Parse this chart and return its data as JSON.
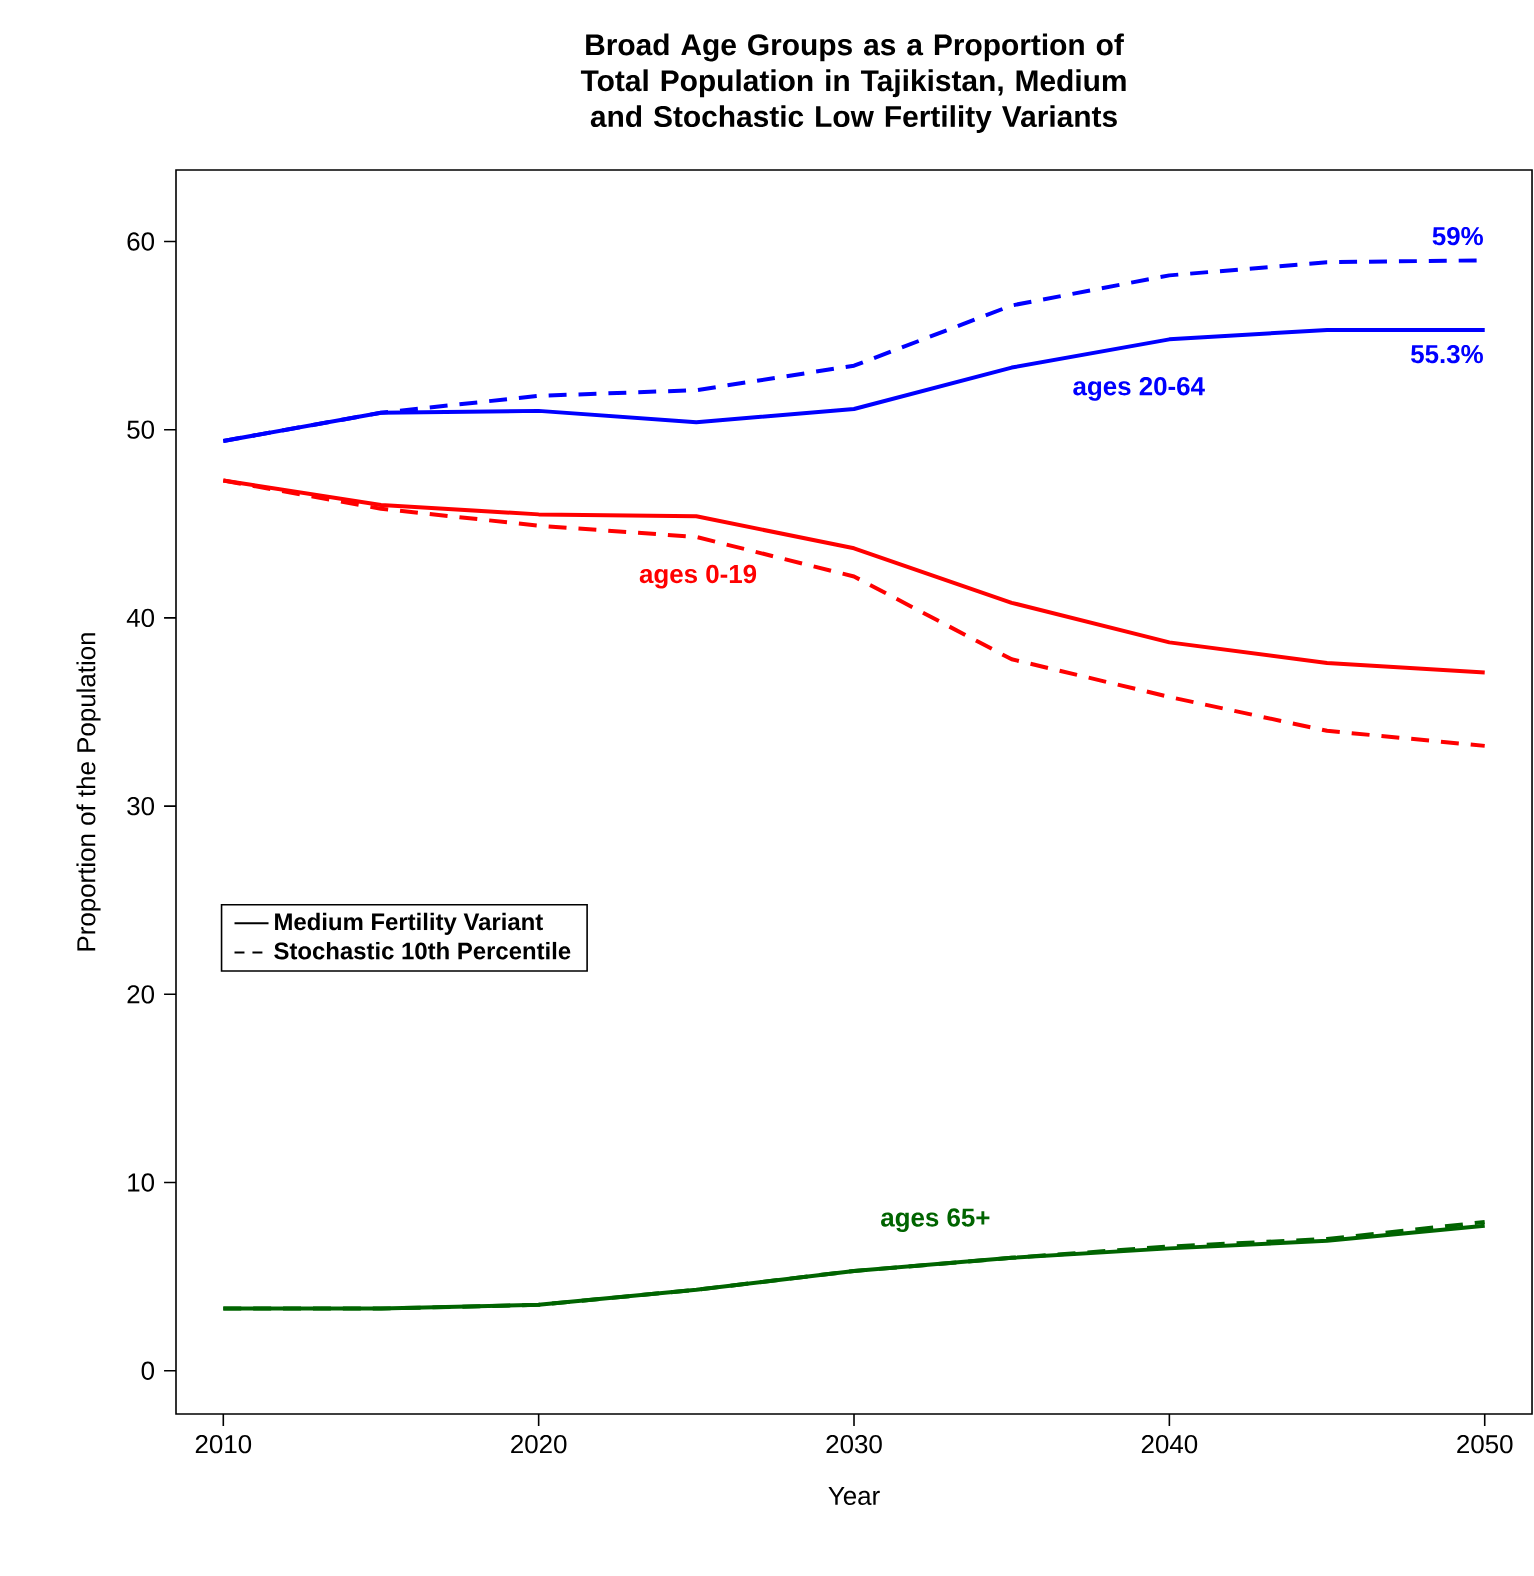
{
  "chart_data": {
    "type": "line",
    "title": "Broad Age Groups as a Proportion of Total Population in Tajikistan, Medium and Stochastic Low Fertility Variants",
    "xlabel": "Year",
    "ylabel": "Proportion of the Population",
    "x": [
      2010,
      2015,
      2020,
      2025,
      2030,
      2035,
      2040,
      2045,
      2050
    ],
    "xlim": [
      2008.5,
      2051.5
    ],
    "ylim": [
      -2.3,
      63.8
    ],
    "xticks": [
      2010,
      2020,
      2030,
      2040,
      2050
    ],
    "yticks": [
      0,
      10,
      20,
      30,
      40,
      50,
      60
    ],
    "grid": false,
    "legend": "left",
    "series": [
      {
        "name": "ages 20-64",
        "color": "#0000ff",
        "line_style": "solid",
        "values": [
          49.4,
          50.9,
          51.0,
          50.4,
          51.1,
          53.3,
          54.8,
          55.3,
          55.3
        ]
      },
      {
        "color": "#0000ff",
        "line_style": "dashed",
        "values": [
          49.4,
          50.9,
          51.8,
          52.1,
          53.4,
          56.6,
          58.2,
          58.9,
          59
        ]
      },
      {
        "name": "ages 0-19",
        "color": "#ff0000",
        "line_style": "solid",
        "values": [
          47.3,
          46.0,
          45.5,
          45.4,
          43.7,
          40.8,
          38.7,
          37.6,
          37.1
        ]
      },
      {
        "color": "#ff0000",
        "line_style": "dashed",
        "values": [
          47.3,
          45.8,
          44.9,
          44.3,
          42.2,
          37.8,
          35.8,
          34.0,
          33.2
        ]
      },
      {
        "name": "ages 65+",
        "color": "#006400",
        "line_style": "solid",
        "values": [
          3.3,
          3.3,
          3.5,
          4.3,
          5.3,
          6.0,
          6.5,
          6.9,
          7.7
        ]
      },
      {
        "color": "#006400",
        "line_style": "dashed",
        "values": [
          3.3,
          3.3,
          3.5,
          4.3,
          5.3,
          6.0,
          6.6,
          7.0,
          7.9
        ]
      },
      {
        "name": "Medium Fertility Variant",
        "color": "#000000",
        "line_style": "solid",
        "values": [
          null,
          null,
          null,
          null,
          null,
          null,
          null,
          null,
          null
        ]
      },
      {
        "name": "Stochastic 10th Percentile",
        "color": "#000000",
        "line_style": "dashed",
        "values": [
          null,
          null,
          null,
          null,
          null,
          null,
          null,
          null,
          null
        ]
      }
    ],
    "annotations": [
      {
        "text": "59%",
        "x": 2050,
        "y": 59
      },
      {
        "text": "55.3%",
        "x": 2050,
        "y": 55.3
      }
    ]
  }
}
